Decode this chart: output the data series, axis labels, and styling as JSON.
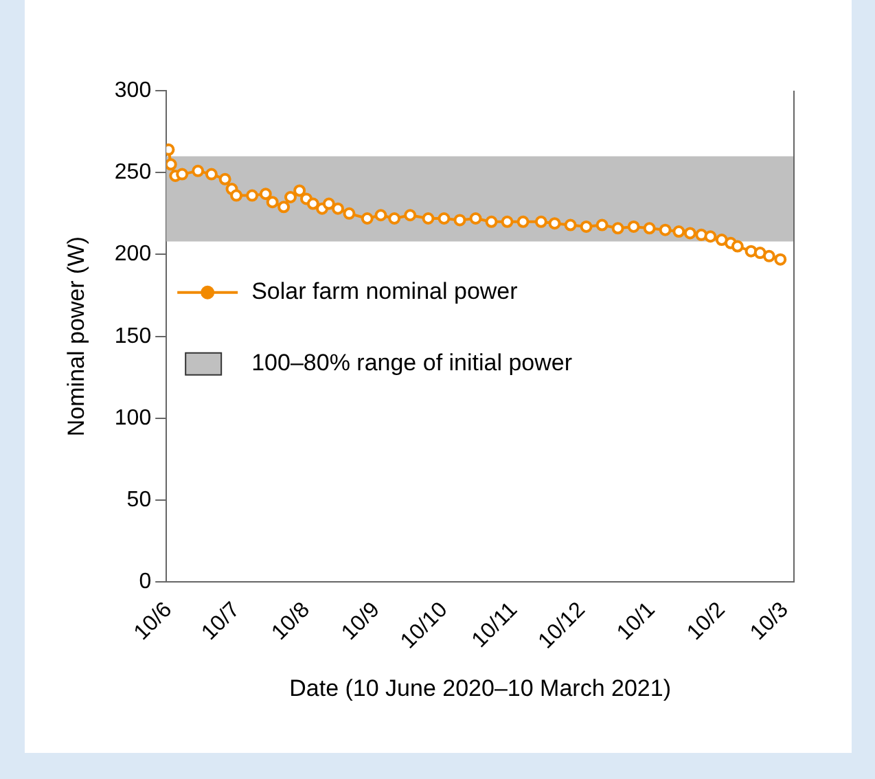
{
  "chart_data": {
    "type": "line",
    "xlabel": "Date (10 June 2020–10 March 2021)",
    "ylabel": "Nominal power (W)",
    "xlim": [
      "2020-06-09",
      "2021-03-14"
    ],
    "xticks": [
      {
        "value": "2020-06-10",
        "label": "10/6"
      },
      {
        "value": "2020-07-10",
        "label": "10/7"
      },
      {
        "value": "2020-08-10",
        "label": "10/8"
      },
      {
        "value": "2020-09-10",
        "label": "10/9"
      },
      {
        "value": "2020-10-10",
        "label": "10/10"
      },
      {
        "value": "2020-11-10",
        "label": "10/11"
      },
      {
        "value": "2020-12-10",
        "label": "10/12"
      },
      {
        "value": "2021-01-10",
        "label": "10/1"
      },
      {
        "value": "2021-02-10",
        "label": "10/2"
      },
      {
        "value": "2021-03-10",
        "label": "10/3"
      }
    ],
    "ylim": [
      0,
      300
    ],
    "yticks": [
      0,
      50,
      100,
      150,
      200,
      250,
      300
    ],
    "grid": false,
    "legend": "left",
    "marker": "circle",
    "line_style": "solid",
    "series": [
      {
        "name": "Solar farm nominal power",
        "color": "#f28a00",
        "x": [
          "2020-06-10",
          "2020-06-11",
          "2020-06-13",
          "2020-06-16",
          "2020-06-23",
          "2020-06-29",
          "2020-07-05",
          "2020-07-08",
          "2020-07-10",
          "2020-07-17",
          "2020-07-23",
          "2020-07-26",
          "2020-07-31",
          "2020-08-03",
          "2020-08-07",
          "2020-08-10",
          "2020-08-13",
          "2020-08-17",
          "2020-08-20",
          "2020-08-24",
          "2020-08-29",
          "2020-09-06",
          "2020-09-12",
          "2020-09-18",
          "2020-09-25",
          "2020-10-03",
          "2020-10-10",
          "2020-10-17",
          "2020-10-24",
          "2020-10-31",
          "2020-11-07",
          "2020-11-14",
          "2020-11-22",
          "2020-11-28",
          "2020-12-05",
          "2020-12-12",
          "2020-12-19",
          "2020-12-26",
          "2021-01-02",
          "2021-01-09",
          "2021-01-16",
          "2021-01-22",
          "2021-01-27",
          "2021-02-01",
          "2021-02-05",
          "2021-02-10",
          "2021-02-14",
          "2021-02-17",
          "2021-02-23",
          "2021-02-27",
          "2021-03-03",
          "2021-03-08"
        ],
        "values": [
          264,
          255,
          248,
          249,
          251,
          249,
          246,
          240,
          236,
          236,
          237,
          232,
          229,
          235,
          239,
          234,
          231,
          228,
          231,
          228,
          225,
          222,
          224,
          222,
          224,
          222,
          222,
          221,
          222,
          220,
          220,
          220,
          220,
          219,
          218,
          217,
          218,
          216,
          217,
          216,
          215,
          214,
          213,
          212,
          211,
          209,
          207,
          205,
          202,
          201,
          199,
          197
        ]
      }
    ],
    "bands": [
      {
        "axis": "y",
        "from": 208,
        "to": 260,
        "label": "100–80% range of initial power",
        "color": "#c0c0c0"
      }
    ]
  }
}
